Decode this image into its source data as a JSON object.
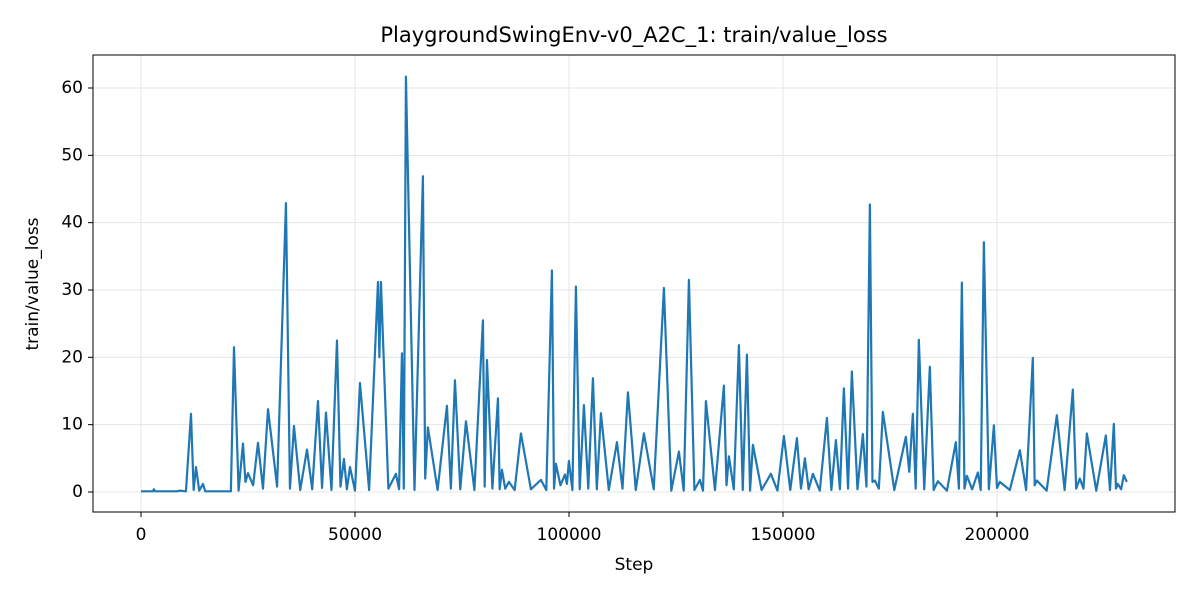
{
  "chart_data": {
    "type": "line",
    "title": "PlaygroundSwingEnv-v0_A2C_1: train/value_loss",
    "x_label": "Step",
    "y_label": "train/value_loss",
    "color": "#1f77b4",
    "grid": true,
    "xlim": [
      -11215,
      241590
    ],
    "ylim": [
      -2.97,
      64.9
    ],
    "xticks": [
      0,
      50000,
      100000,
      150000,
      200000
    ],
    "yticks": [
      0,
      10,
      20,
      30,
      40,
      50,
      60
    ],
    "x": [
      0,
      2800,
      3000,
      3300,
      8500,
      9000,
      10500,
      11680,
      12300,
      12850,
      13600,
      14480,
      15000,
      18000,
      21000,
      21730,
      22800,
      23830,
      24400,
      25000,
      26200,
      27330,
      28500,
      29670,
      31800,
      33870,
      34800,
      35740,
      37200,
      38780,
      40000,
      41350,
      42300,
      43220,
      44500,
      45790,
      46600,
      47420,
      48100,
      48830,
      50000,
      51160,
      53300,
      55370,
      55700,
      56060,
      57800,
      59560,
      60300,
      60970,
      61400,
      61900,
      63900,
      65870,
      66400,
      67030,
      69300,
      71480,
      72400,
      73350,
      74600,
      75920,
      77900,
      79890,
      80300,
      80830,
      82100,
      83400,
      83800,
      84330,
      85100,
      85960,
      87300,
      88770,
      91100,
      93440,
      94700,
      96010,
      96500,
      96940,
      98000,
      99050,
      99500,
      99980,
      100800,
      101620,
      102500,
      103490,
      104500,
      105590,
      106500,
      107460,
      109300,
      111200,
      112500,
      113770,
      115600,
      117500,
      119800,
      122180,
      123900,
      125680,
      126800,
      128020,
      129300,
      130590,
      131300,
      131990,
      134100,
      136190,
      136800,
      137360,
      138500,
      139700,
      140600,
      141570,
      142300,
      142970,
      145000,
      147170,
      148700,
      150210,
      151700,
      153250,
      154200,
      155120,
      156000,
      156990,
      158600,
      160260,
      161300,
      162360,
      163300,
      164220,
      165200,
      166090,
      167400,
      168660,
      169500,
      170300,
      170900,
      171470,
      172400,
      173330,
      176000,
      178710,
      179500,
      180340,
      181000,
      181740,
      183000,
      184310,
      185200,
      186180,
      188300,
      190380,
      191100,
      191790,
      192400,
      192960,
      194200,
      195530,
      196200,
      196930,
      198100,
      199270,
      200000,
      200660,
      203000,
      205340,
      206800,
      208370,
      208800,
      209310,
      211600,
      213980,
      215800,
      217720,
      218500,
      219350,
      220200,
      220990,
      223200,
      225430,
      226400,
      227300,
      227800,
      228230,
      229000,
      229630,
      230330
    ],
    "values": [
      0.1,
      0.1,
      0.4,
      0.1,
      0.1,
      0.2,
      0.1,
      11.6,
      0.3,
      3.7,
      0.2,
      1.2,
      0.1,
      0.1,
      0.1,
      21.5,
      0.2,
      7.2,
      1.5,
      2.8,
      1.0,
      7.3,
      0.5,
      12.3,
      0.8,
      42.9,
      0.5,
      9.8,
      0.3,
      6.3,
      0.4,
      13.5,
      0.6,
      11.8,
      0.3,
      22.5,
      0.8,
      4.9,
      0.4,
      3.7,
      0.2,
      16.2,
      0.3,
      31.2,
      20.0,
      31.2,
      0.5,
      2.7,
      0.4,
      20.6,
      0.5,
      61.7,
      0.3,
      46.9,
      2.0,
      9.6,
      0.3,
      12.8,
      0.5,
      16.6,
      0.4,
      10.5,
      0.3,
      25.5,
      0.8,
      19.6,
      0.5,
      13.9,
      0.4,
      3.3,
      0.5,
      1.5,
      0.3,
      8.7,
      0.4,
      1.8,
      0.3,
      32.9,
      0.5,
      4.2,
      1.0,
      2.6,
      1.2,
      4.6,
      0.3,
      30.5,
      0.4,
      12.9,
      0.5,
      16.9,
      0.4,
      11.7,
      0.3,
      7.4,
      0.5,
      14.8,
      0.3,
      8.7,
      0.4,
      30.3,
      0.2,
      6.0,
      0.2,
      31.5,
      0.3,
      1.8,
      0.2,
      13.5,
      0.3,
      15.8,
      1.0,
      5.3,
      0.4,
      21.8,
      0.3,
      20.4,
      0.2,
      7.0,
      0.3,
      2.7,
      0.2,
      8.3,
      0.3,
      8.0,
      0.5,
      5.0,
      0.4,
      2.7,
      0.2,
      11.0,
      0.3,
      7.7,
      0.4,
      15.4,
      0.5,
      17.9,
      0.4,
      8.6,
      0.8,
      42.7,
      1.5,
      1.7,
      0.5,
      11.9,
      0.3,
      8.2,
      3.0,
      11.6,
      0.5,
      22.6,
      0.4,
      18.6,
      0.3,
      1.6,
      0.2,
      7.4,
      0.5,
      31.1,
      0.5,
      2.4,
      0.4,
      2.9,
      0.3,
      37.1,
      0.4,
      9.9,
      0.6,
      1.5,
      0.3,
      6.2,
      0.3,
      19.9,
      1.0,
      1.7,
      0.2,
      11.4,
      0.3,
      15.2,
      0.5,
      2.0,
      0.5,
      8.7,
      0.2,
      8.4,
      0.3,
      10.1,
      0.5,
      1.2,
      0.4,
      2.5,
      1.5
    ]
  }
}
